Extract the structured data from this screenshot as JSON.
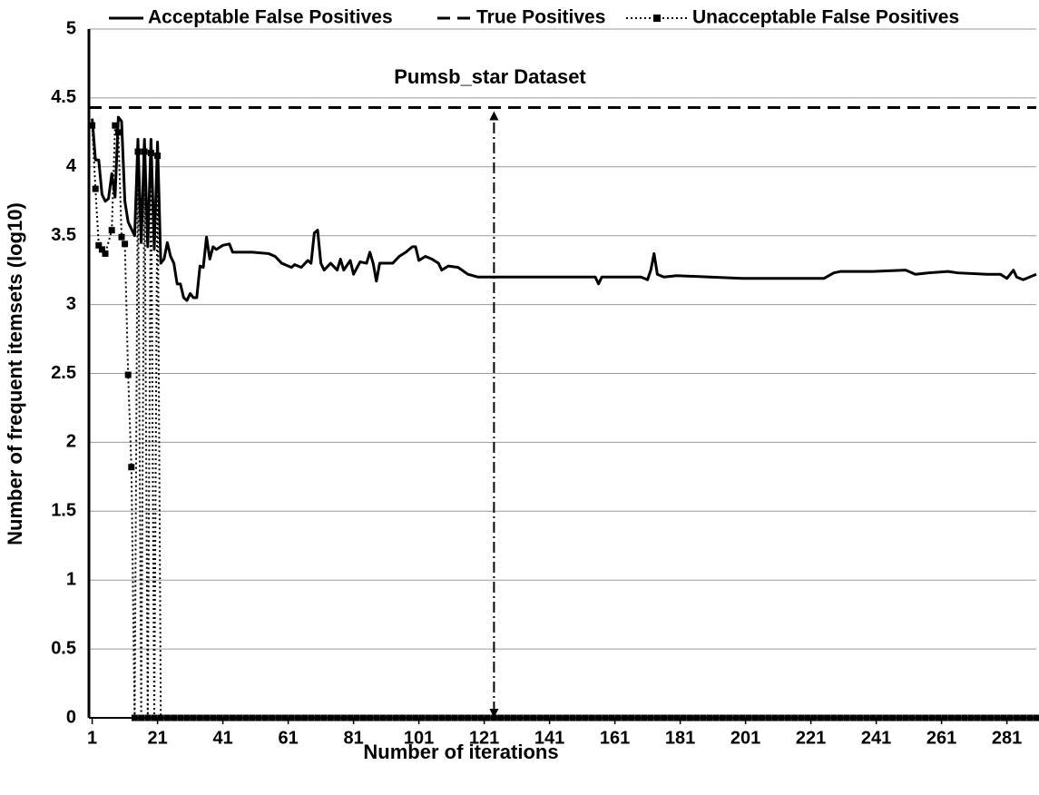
{
  "chart_data": {
    "type": "line",
    "annotation": "Pumsb_star  Dataset",
    "x_label": "Number of iterations",
    "y_label": "Number of frequent itemsets (log10)",
    "xlim": [
      0,
      290
    ],
    "ylim": [
      0,
      5
    ],
    "xticks": [
      1,
      21,
      41,
      61,
      81,
      101,
      121,
      141,
      161,
      181,
      201,
      221,
      241,
      261,
      281
    ],
    "yticks": [
      0,
      0.5,
      1,
      1.5,
      2,
      2.5,
      3,
      3.5,
      4,
      4.5,
      5
    ],
    "grid": true,
    "legend": "top",
    "vline": {
      "x": 124,
      "y": [
        0,
        4.43
      ]
    },
    "series": [
      {
        "name": "Acceptable False Positives",
        "color": "#000000",
        "style": "solid",
        "x": [
          1,
          2,
          3,
          4,
          5,
          6,
          7,
          8,
          9,
          10,
          11,
          12,
          13,
          14,
          15,
          16,
          17,
          18,
          19,
          20,
          21,
          22,
          23,
          24,
          25,
          26,
          27,
          28,
          29,
          30,
          31,
          32,
          33,
          34,
          35,
          36,
          37,
          38,
          39,
          41,
          43,
          44,
          50,
          55,
          57,
          59,
          62,
          63,
          65,
          67,
          68,
          69,
          70,
          71,
          72,
          74,
          76,
          77,
          78,
          80,
          81,
          83,
          85,
          86,
          87,
          88,
          89,
          93,
          95,
          97,
          99,
          100,
          101,
          103,
          105,
          107,
          108,
          110,
          113,
          116,
          119,
          121,
          130,
          155,
          156,
          157,
          169,
          171,
          172,
          173,
          174,
          176,
          180,
          190,
          200,
          225,
          228,
          230,
          240,
          250,
          253,
          257,
          263,
          266,
          275,
          279,
          281,
          283,
          284,
          286,
          288,
          290
        ],
        "values": [
          4.35,
          4.05,
          4.05,
          3.8,
          3.75,
          3.77,
          3.95,
          3.78,
          4.36,
          4.33,
          3.75,
          3.6,
          3.55,
          3.5,
          4.2,
          3.45,
          4.2,
          3.42,
          4.2,
          3.4,
          4.18,
          3.3,
          3.33,
          3.45,
          3.35,
          3.3,
          3.15,
          3.15,
          3.05,
          3.03,
          3.08,
          3.05,
          3.05,
          3.28,
          3.27,
          3.49,
          3.33,
          3.42,
          3.4,
          3.43,
          3.44,
          3.38,
          3.38,
          3.37,
          3.35,
          3.3,
          3.27,
          3.29,
          3.27,
          3.32,
          3.3,
          3.52,
          3.54,
          3.3,
          3.25,
          3.3,
          3.25,
          3.33,
          3.25,
          3.32,
          3.22,
          3.31,
          3.3,
          3.38,
          3.3,
          3.17,
          3.3,
          3.3,
          3.35,
          3.38,
          3.42,
          3.42,
          3.32,
          3.35,
          3.33,
          3.3,
          3.25,
          3.28,
          3.27,
          3.22,
          3.2,
          3.2,
          3.2,
          3.2,
          3.15,
          3.2,
          3.2,
          3.18,
          3.25,
          3.37,
          3.22,
          3.2,
          3.21,
          3.2,
          3.19,
          3.19,
          3.23,
          3.24,
          3.24,
          3.25,
          3.22,
          3.23,
          3.24,
          3.23,
          3.22,
          3.22,
          3.19,
          3.25,
          3.2,
          3.18,
          3.2,
          3.22
        ]
      },
      {
        "name": "True Positives",
        "color": "#000000",
        "style": "dashed",
        "x": [
          0,
          290
        ],
        "values": [
          4.43,
          4.43
        ]
      },
      {
        "name": "Unacceptable False Positives",
        "color": "#000000",
        "style": "dotted",
        "marker": "square",
        "x": [
          1,
          2,
          3,
          4,
          5,
          7,
          8,
          9,
          10,
          11,
          12,
          13,
          14,
          15,
          16,
          17,
          18,
          19,
          20,
          21,
          22,
          24,
          26,
          28,
          30,
          32,
          34,
          36,
          38,
          40,
          42,
          44,
          46,
          48,
          50,
          52,
          54,
          56,
          58,
          60,
          62,
          64,
          66,
          68,
          70,
          72,
          74,
          76,
          78,
          80,
          82,
          84,
          86,
          88,
          90,
          92,
          94,
          96,
          98,
          100,
          102,
          104,
          106,
          108,
          110,
          112,
          114,
          116,
          118,
          120,
          122,
          124,
          126,
          128,
          130,
          132,
          134,
          136,
          138,
          140,
          142,
          144,
          146,
          148,
          150,
          152,
          154,
          156,
          158,
          160,
          162,
          164,
          166,
          168,
          170,
          172,
          174,
          176,
          178,
          180,
          182,
          184,
          186,
          188,
          190,
          192,
          194,
          196,
          198,
          200,
          202,
          204,
          206,
          208,
          210,
          212,
          214,
          216,
          218,
          220,
          222,
          224,
          226,
          228,
          230,
          232,
          234,
          236,
          238,
          240,
          242,
          244,
          246,
          248,
          250,
          252,
          254,
          256,
          258,
          260,
          262,
          264,
          266,
          268,
          270,
          272,
          274,
          276,
          278,
          280,
          282,
          284,
          286,
          288,
          290
        ],
        "values": [
          4.3,
          3.84,
          3.43,
          3.4,
          3.37,
          3.54,
          4.3,
          4.25,
          3.49,
          3.44,
          2.49,
          1.82,
          0,
          4.11,
          0,
          4.11,
          0,
          4.1,
          0,
          4.08,
          0,
          0,
          0,
          0,
          0,
          0,
          0,
          0,
          0,
          0,
          0,
          0,
          0,
          0,
          0,
          0,
          0,
          0,
          0,
          0,
          0,
          0,
          0,
          0,
          0,
          0,
          0,
          0,
          0,
          0,
          0,
          0,
          0,
          0,
          0,
          0,
          0,
          0,
          0,
          0,
          0,
          0,
          0,
          0,
          0,
          0,
          0,
          0,
          0,
          0,
          0,
          0,
          0,
          0,
          0,
          0,
          0,
          0,
          0,
          0,
          0,
          0,
          0,
          0,
          0,
          0,
          0,
          0,
          0,
          0,
          0,
          0,
          0,
          0,
          0,
          0,
          0,
          0,
          0,
          0,
          0,
          0,
          0,
          0,
          0,
          0,
          0,
          0,
          0,
          0,
          0,
          0,
          0,
          0,
          0,
          0,
          0,
          0,
          0,
          0,
          0,
          0,
          0,
          0,
          0,
          0,
          0,
          0,
          0,
          0,
          0,
          0,
          0,
          0,
          0,
          0,
          0,
          0,
          0,
          0,
          0,
          0,
          0,
          0,
          0,
          0,
          0,
          0,
          0,
          0,
          0,
          0,
          0,
          0,
          0
        ]
      }
    ]
  }
}
